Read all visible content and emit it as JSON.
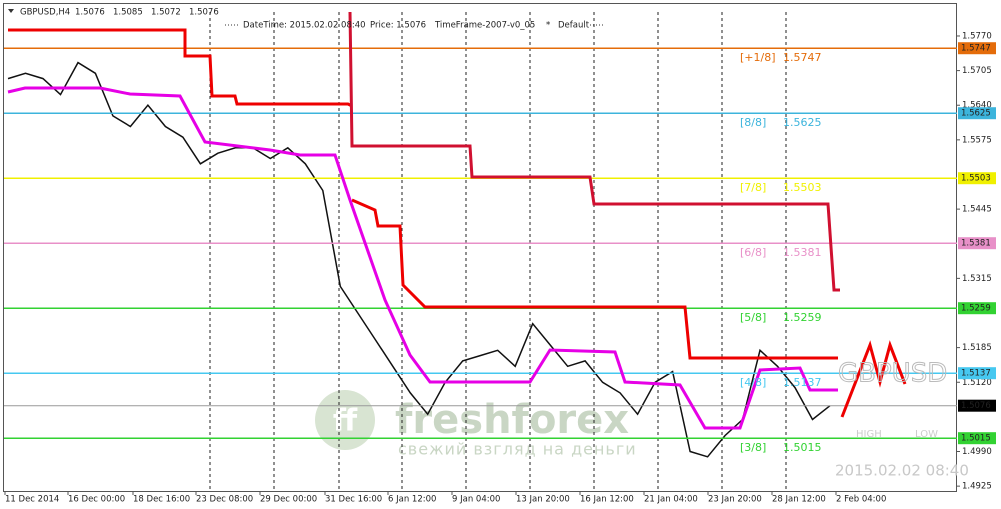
{
  "header": {
    "symbol": "GBPUSD,H4",
    "quote": [
      1.5076,
      1.5085,
      1.5072,
      1.5076
    ]
  },
  "info": [
    "DateTime: 2015.02.02 08:40",
    "Price: 1.5076",
    "TimeFrame-2007-v0_05",
    "*",
    "Default"
  ],
  "price_axis": {
    "range": [
      1.4914,
      1.5815
    ],
    "ticks": [
      {
        "value": 1.577,
        "label": "1.5770"
      },
      {
        "value": 1.5705,
        "label": "1.5705"
      },
      {
        "value": 1.564,
        "label": "1.5640"
      },
      {
        "value": 1.5575,
        "label": "1.5575"
      },
      {
        "value": 1.5445,
        "label": "1.5445"
      },
      {
        "value": 1.5315,
        "label": "1.5315"
      },
      {
        "value": 1.5185,
        "label": "1.5185"
      },
      {
        "value": 1.512,
        "label": "1.5120"
      },
      {
        "value": 1.499,
        "label": "1.4990"
      },
      {
        "value": 1.4925,
        "label": "1.4925"
      }
    ]
  },
  "levels": [
    {
      "tag": "[+1/8]",
      "value": 1.5747,
      "color": "#e46c0a",
      "text_color": "#fff"
    },
    {
      "tag": "[8/8]",
      "value": 1.5625,
      "color": "#3cb4dc",
      "text_color": "#fff"
    },
    {
      "tag": "[7/8]",
      "value": 1.5503,
      "color": "#f0f000",
      "text_color": "#999"
    },
    {
      "tag": "[6/8]",
      "value": 1.5381,
      "color": "#e890c8",
      "text_color": "#fff"
    },
    {
      "tag": "[5/8]",
      "value": 1.5259,
      "color": "#32d232",
      "text_color": "#000"
    },
    {
      "tag": "[4/8]",
      "value": 1.5137,
      "color": "#46c8f0",
      "text_color": "#000"
    },
    {
      "tag": "[3/8]",
      "value": 1.5015,
      "color": "#32d232",
      "text_color": "#fff"
    }
  ],
  "current_price": 1.5076,
  "time_axis": [
    "11 Dec 2014",
    "16 Dec 00:00",
    "18 Dec 16:00",
    "23 Dec 08:00",
    "29 Dec 00:00",
    "31 Dec 16:00",
    "6 Jan 12:00",
    "9 Jan 04:00",
    "13 Jan 20:00",
    "16 Jan 12:00",
    "21 Jan 04:00",
    "23 Jan 20:00",
    "28 Jan 12:00",
    "2 Feb 04:00"
  ],
  "closes": [
    1.569,
    1.57,
    1.569,
    1.566,
    1.572,
    1.57,
    1.562,
    1.56,
    1.564,
    1.56,
    1.558,
    1.553,
    1.555,
    1.556,
    1.556,
    1.554,
    1.556,
    1.553,
    1.548,
    1.53,
    1.525,
    1.52,
    1.515,
    1.51,
    1.506,
    1.512,
    1.516,
    1.517,
    1.518,
    1.515,
    1.523,
    1.519,
    1.515,
    1.516,
    1.512,
    1.51,
    1.506,
    1.512,
    1.514,
    1.499,
    1.498,
    1.502,
    1.505,
    1.518,
    1.515,
    1.511,
    1.505,
    1.5076
  ],
  "watermark": {
    "brand": "freshforex",
    "slogan": "свежий взгляд на деньги"
  },
  "overlay": {
    "symbol": "GBPUSD",
    "high": "HIGH",
    "low": "LOW",
    "time": "2015.02.02 08:40"
  }
}
